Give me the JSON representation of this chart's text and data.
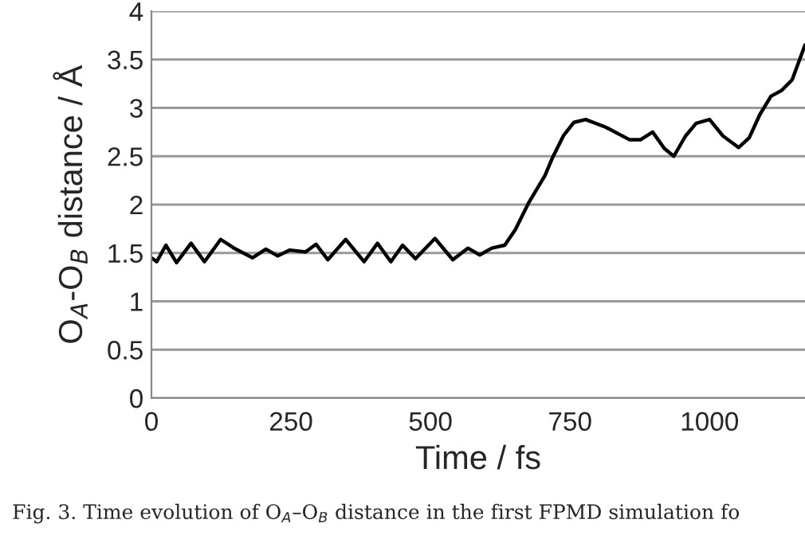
{
  "chart_data": {
    "type": "line",
    "xlabel": "Time / fs",
    "ylabel": "O$_{A}$-O$_{B}$ distance / Å",
    "annotations": [
      "Fig. 3. Time evolution of O$_{A}$–O$_{B}$ distance in the first FPMD simulation fo"
    ],
    "series": [
      {
        "color": "#000000",
        "x": [
          0,
          9.5,
          26,
          45,
          71,
          95,
          124,
          148,
          181,
          205,
          226,
          248,
          276,
          295,
          316,
          348,
          381,
          405,
          429,
          450,
          473,
          508,
          540,
          567,
          588,
          610,
          633,
          652,
          676,
          705,
          719,
          738,
          757,
          778,
          814,
          857,
          876,
          898,
          919,
          936,
          957,
          976,
          1000,
          1024,
          1052,
          1071,
          1090,
          1110,
          1129,
          1148,
          1171
        ],
        "values": [
          1.45,
          1.41,
          1.58,
          1.4,
          1.6,
          1.41,
          1.64,
          1.55,
          1.45,
          1.54,
          1.47,
          1.53,
          1.51,
          1.59,
          1.43,
          1.64,
          1.41,
          1.6,
          1.41,
          1.58,
          1.44,
          1.65,
          1.43,
          1.55,
          1.48,
          1.55,
          1.58,
          1.74,
          2.02,
          2.3,
          2.49,
          2.71,
          2.85,
          2.88,
          2.8,
          2.67,
          2.67,
          2.75,
          2.58,
          2.5,
          2.71,
          2.84,
          2.88,
          2.71,
          2.59,
          2.69,
          2.93,
          3.12,
          3.18,
          3.29,
          3.65
        ]
      }
    ],
    "xlim": [
      0,
      1171
    ],
    "xticks": [
      0,
      250,
      500,
      750,
      1000
    ],
    "ylim": [
      0,
      4
    ],
    "yticks": [
      0,
      0.5,
      1,
      1.5,
      2,
      2.5,
      3,
      3.5,
      4
    ],
    "grid": "y",
    "legend": false,
    "marker": "none",
    "line_style": "solid"
  }
}
